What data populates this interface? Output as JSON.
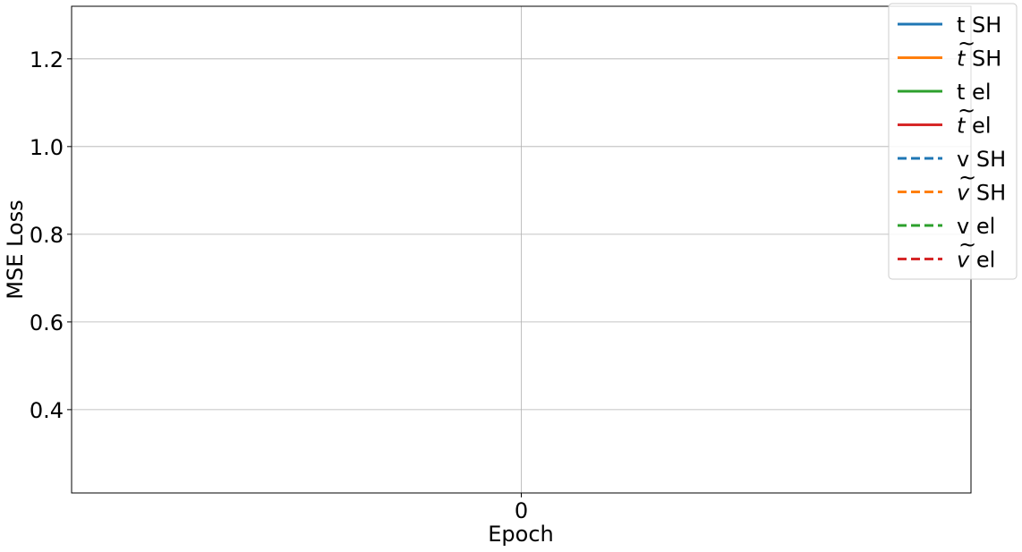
{
  "chart_data": {
    "type": "line",
    "title": "",
    "xlabel": "Epoch",
    "ylabel": "MSE Loss",
    "xlim": [
      -1,
      1
    ],
    "ylim": [
      0.21,
      1.32
    ],
    "x_ticks": [
      0
    ],
    "x_tick_labels": [
      "0"
    ],
    "y_ticks": [
      0.4,
      0.6,
      0.8,
      1.0,
      1.2
    ],
    "y_tick_labels": [
      "0.4",
      "0.6",
      "0.8",
      "1.0",
      "1.2"
    ],
    "grid": true,
    "legend_position": "top-right",
    "series": [
      {
        "name": "t SH",
        "base": "t",
        "tilde": false,
        "suffix": "SH",
        "color": "#1f77b4",
        "style": "solid",
        "x": [],
        "y": []
      },
      {
        "name": "t̃ SH",
        "base": "t",
        "tilde": true,
        "suffix": "SH",
        "color": "#ff7f0e",
        "style": "solid",
        "x": [],
        "y": []
      },
      {
        "name": "t el",
        "base": "t",
        "tilde": false,
        "suffix": "el",
        "color": "#2ca02c",
        "style": "solid",
        "x": [],
        "y": []
      },
      {
        "name": "t̃ el",
        "base": "t",
        "tilde": true,
        "suffix": "el",
        "color": "#d62728",
        "style": "solid",
        "x": [],
        "y": []
      },
      {
        "name": "v SH",
        "base": "v",
        "tilde": false,
        "suffix": "SH",
        "color": "#1f77b4",
        "style": "dashed",
        "x": [],
        "y": []
      },
      {
        "name": "ṽ SH",
        "base": "v",
        "tilde": true,
        "suffix": "SH",
        "color": "#ff7f0e",
        "style": "dashed",
        "x": [],
        "y": []
      },
      {
        "name": "v el",
        "base": "v",
        "tilde": false,
        "suffix": "el",
        "color": "#2ca02c",
        "style": "dashed",
        "x": [],
        "y": []
      },
      {
        "name": "ṽ el",
        "base": "v",
        "tilde": true,
        "suffix": "el",
        "color": "#d62728",
        "style": "dashed",
        "x": [],
        "y": []
      }
    ]
  }
}
